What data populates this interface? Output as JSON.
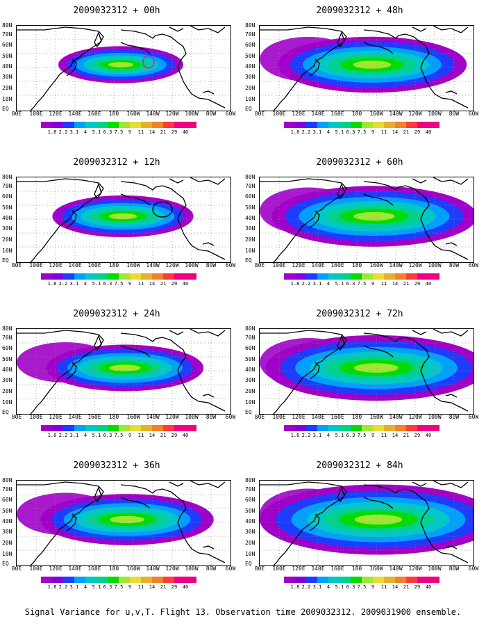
{
  "caption": "Signal Variance for u,v,T. Flight 13. Observation time 2009032312. 2009031900 ensemble.",
  "lat_labels": [
    "80N",
    "70N",
    "60N",
    "50N",
    "40N",
    "30N",
    "20N",
    "10N",
    "EQ"
  ],
  "lon_labels": [
    "80E",
    "100E",
    "120E",
    "140E",
    "160E",
    "180",
    "160W",
    "140W",
    "120W",
    "100W",
    "80W",
    "60W"
  ],
  "legend": {
    "labels": [
      "1.8",
      "2.2",
      "3.1",
      "4",
      "5.1",
      "6.3",
      "7.5",
      "9",
      "11",
      "14",
      "21",
      "29",
      "40"
    ],
    "colors": [
      "#a000c8",
      "#8200dc",
      "#1e3cff",
      "#00a0ff",
      "#00c8c8",
      "#00d28c",
      "#00dc00",
      "#a0e632",
      "#e6dc32",
      "#e6af2d",
      "#f08228",
      "#fa3c3c",
      "#f00082"
    ]
  },
  "panels": [
    {
      "title": "2009032312 + 00h",
      "lead": 0
    },
    {
      "title": "2009032312 + 48h",
      "lead": 48
    },
    {
      "title": "2009032312 + 12h",
      "lead": 12
    },
    {
      "title": "2009032312 + 60h",
      "lead": 60
    },
    {
      "title": "2009032312 + 24h",
      "lead": 24
    },
    {
      "title": "2009032312 + 72h",
      "lead": 72
    },
    {
      "title": "2009032312 + 36h",
      "lead": 36
    },
    {
      "title": "2009032312 + 84h",
      "lead": 84
    }
  ]
}
